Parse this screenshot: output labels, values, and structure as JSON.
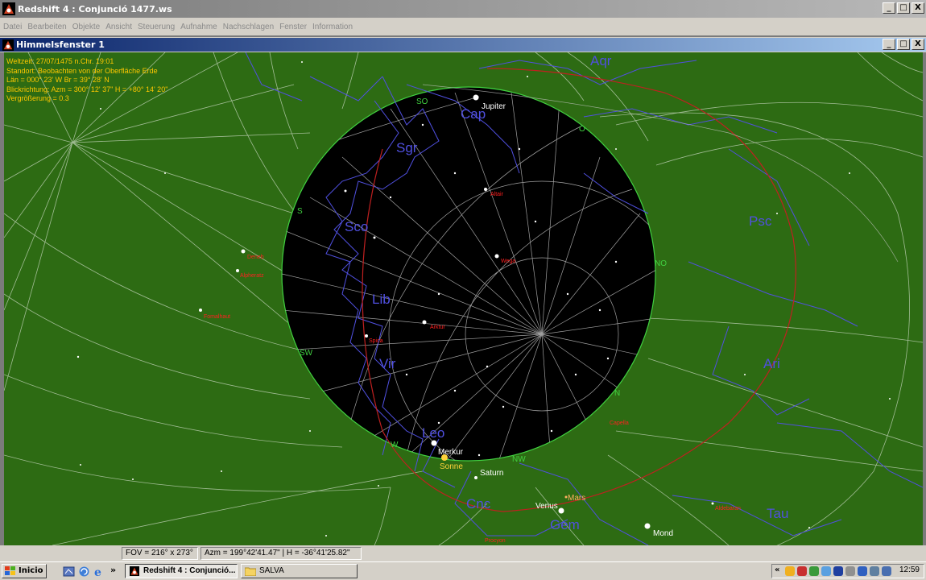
{
  "app": {
    "title": "Redshift 4 : Conjunció 1477.ws",
    "menu": [
      "Datei",
      "Bearbeiten",
      "Objekte",
      "Ansicht",
      "Steuerung",
      "Aufnahme",
      "Nachschlagen",
      "Fenster",
      "Information"
    ]
  },
  "window_buttons": [
    "_",
    "□",
    "X"
  ],
  "child_window": {
    "title": "Himmelsfenster 1"
  },
  "sky_info": {
    "line1": "Weltzeit: 27/07/1475 n.Chr. 19:01",
    "line2": "Standort: Beobachten von der Oberfläche Erde",
    "line3": "Län = 000° 23' W  Br = 39° 28' N",
    "line4": "Blickrichtung: Azm = 300° 12' 37\"  H = +80° 14' 20\"",
    "line5": "Vergrößerung = 0.3"
  },
  "constellations": {
    "aqr": "Aqr",
    "cap": "Cap",
    "sgr": "Sgr",
    "sco": "Sco",
    "lib": "Lib",
    "vir": "Vir",
    "leo": "Leo",
    "cnc": "Cnc",
    "gem": "Gem",
    "psc": "Psc",
    "ari": "Ari",
    "tau": "Tau"
  },
  "planets": {
    "jupiter": "Jupiter",
    "merkur": "Merkur",
    "sonne": "Sonne",
    "saturn": "Saturn",
    "venus": "Venus",
    "mars": "Mars",
    "mond": "Mond"
  },
  "stars": {
    "altair": "Altair",
    "wega": "Wega",
    "arktur": "Arktur",
    "spica": "Spica",
    "deneb": "Deneb",
    "alpheratz": "Alpheratz",
    "capella": "Capella",
    "aldebaran": "Aldebaran",
    "procyon": "Procyon",
    "fomalhaut": "Fomalhaut"
  },
  "compass": {
    "sw": "SW",
    "w": "W",
    "nw": "NW",
    "n": "N",
    "no": "NO",
    "o": "O",
    "s": "S",
    "so": "SO"
  },
  "status": {
    "fov": "FOV = 216° x 273°",
    "azm": "Azm = 199°42'41.47\" | H = -36°41'25.82\""
  },
  "taskbar": {
    "start": "Inicio",
    "chevron": "»",
    "task1": "Redshift 4 : Conjunció...",
    "task2": "SALVA",
    "tray_chevron": "«",
    "clock": "12:59"
  },
  "colors": {
    "ground": "#2d6b13",
    "sky": "#000000",
    "info_text": "#ffc800",
    "constellation": "#5050e0",
    "ecliptic": "#c02020",
    "horizon": "#40d040",
    "star_label": "#ff2020"
  }
}
